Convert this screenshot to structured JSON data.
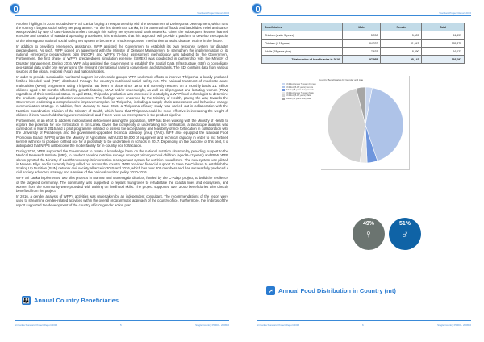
{
  "header": {
    "report_title": "Standard Project Report 2016"
  },
  "left_page": {
    "paragraphs": [
      "Another highlight in 2016 included WFP Sri Lanka forging a new partnership with the Department of Divineguma Development, which runs the country's largest social safety net programme. For the first time in Sri Lanka, in the aftermath of floods and landslides, relief assistance was provided by way of cash-based transfers through this safety net system and bank networks. Given the subsequent lessons learned exercise and creation of standard operating procedures, it is anticipated that this approach will provide a platform to develop the capacity of the Divineguma national social safety net system to become a \"shock-responsive\" mechanism to assist disaster victims in the future.",
      "In addition to providing emergency assistance, WFP assisted the Government to establish it's own response system for disaster preparedness. As such, WFP signed an agreement with the Ministry of Disaster Management to strengthen the implementation of its national emergency preparedness plan (NEOP), and WFP's 72-hour assessment methodology was adopted by the Government. Furthermore, the first phase of WFP's preparedness simulation exercise (SIMEX) was conducted in partnership with the Ministry of Disaster Management. During 2016, WFP also assisted the Government to establish the Spatial Data Infrastructure (SDI) to consolidate geo-spatial data under one server using the relevant international naming conventions and standards. The SDI contains data from various sources at the global, regional (Asia), and national scales.",
      "In order to provide sustainable nutritional support for vulnerable groups, WFP undertook efforts to improve Thriposha, a locally produced fortified blended food (FBF) distributed through the country's nutritional social safety net. The national treatment of moderate acute malnutrition (MAM) programme using Thriposha has been in place since 1973 and currently reaches on a monthly basis 1.1 million children aged 6-59 months affected by growth faltering, MAM and/or underweight, as well as all pregnant and lactating women (PLW) regardless of their nutritional status. In April 2016, Thriposha production was assessed in a study by a WFP food technologist to determine the products quality and production weaknesses. The findings were endorsed by the Ministry of Health, paving the way towards the Government endorsing a comprehensive improvement plan for Thriposha, including a supply chain assessment and behaviour change communication strategy. In addition, from January to June 2016, a Thriposha efficacy study was carried out in collaboration with the Nutrition Coordination Division of the Ministry of Health, which found that Thriposha could be more effective in increasing the weight of children if intra-household sharing were minimized, and if there were no interruptions in the product pipeline.",
      "Furthermore, in an effort to address micronutrient deficiencies among the population, WFP has been working with the Ministry of Health to explore the potential for rice fortification in Sri Lanka. Given the complexity of undertaking rice fortification, a landscape analysis was carried out in March 2016 and a pilot programme initiated to assess the acceptability and feasibility of rice fortification in collaboration with the University of Peradeniya and the government-appointed technical advisory group (TAG). WFP also equipped the National Food Promotion Board (NFPB) under the Ministry of Agriculture, with USD 50,000 of equipment and technical capacity in order to mix fortified kernels with rice to produce fortified rice for a pilot study to be undertaken in schools in 2017. Depending on the outcome of this pilot, it is anticipated that NFPB will become the model facility for in-country rice fortification.",
      "During 2016, WFP supported the Government to create a knowledge base on the national nutrition situation by providing support to the Medical Research Institute (MRI), to conduct baseline nutrition surveys amongst primary school children (aged 6-12 years) and PLW. WFP also supported the Ministry of Health to revamp its information management system for nutrition surveillance. The new system was piloted in Nuwara Eliya and is currently being rolled out across the country. WFP provided financial support to Save the Children to establish the Scaling Up Nutrition (SUN) network civil society alliance in 2015 and 2016, which has over 200 members and has successfully produced a civil society advocacy strategy and a review of the national nutrition policy 2010-2016.",
      "WFP Sri Lanka implemented two pilot projects in Mannar and Moneragala districts, funded by the C-Adapt project, to build the resilience of the targeted community. The community was supported to replant mangroves to rehabilitate the coastal lines and ecosystem, and women from the community were provided with training on livelihood skills. The project supported over 3,000 beneficiaries who directly benefited from the project.",
      "In 2016, a gender analysis of WFP's activities was undertaken by an independent consultant. The recommendations of the report were used to streamline gender-related activities within the overall programmatic approach of the country office. Furthermore, the findings of the report supported the development of the country office's gender action plan."
    ],
    "section_title": "Annual Country Beneficiaries",
    "footer": {
      "left": "Sri Lanka Standard Project Report 2016",
      "page": "5",
      "right": "Single Country PRRO - 200866"
    }
  },
  "right_page": {
    "table": {
      "headers": [
        "Beneficiaries",
        "Male",
        "Female",
        "Total"
      ],
      "rows": [
        [
          "Children (under 5 years)",
          "5,990",
          "5,609",
          "11,599"
        ],
        [
          "Children (5-18 years)",
          "84,332",
          "81,043",
          "165,375"
        ],
        [
          "Adults (18 years plus)",
          "7,633",
          "8,490",
          "16,123"
        ]
      ],
      "total_row": [
        "Total number of beneficiaries in 2016",
        "97,955",
        "95,142",
        "193,097"
      ]
    },
    "gender": {
      "female_pct": "49%",
      "male_pct": "51%",
      "female_color": "#6b7470",
      "male_color": "#0f63a6"
    },
    "section_title": "Annual Food Distribution in Country (mt)",
    "footer": {
      "left": "Sri Lanka Standard Project Report 2016",
      "page": "6",
      "right": "Single Country PRRO - 200866"
    }
  },
  "chart_data": {
    "type": "pie",
    "title": "Country Beneficiaries by Gender and Age",
    "categories": [
      "Children (under 5 years) Female",
      "Children (5-18 years) Female",
      "Adults (18 years plus) Female",
      "Children (under 5 years) Male",
      "Children (5-18 years) Male",
      "Adults (18 years plus) Male"
    ],
    "values": [
      5609,
      81043,
      8490,
      5990,
      84332,
      7633
    ],
    "colors": [
      "#c9d7f0",
      "#aec3e8",
      "#6d95dd",
      "#e6e6e6",
      "#d3d3d3",
      "#a6a6a6"
    ],
    "legend": "top-left"
  }
}
